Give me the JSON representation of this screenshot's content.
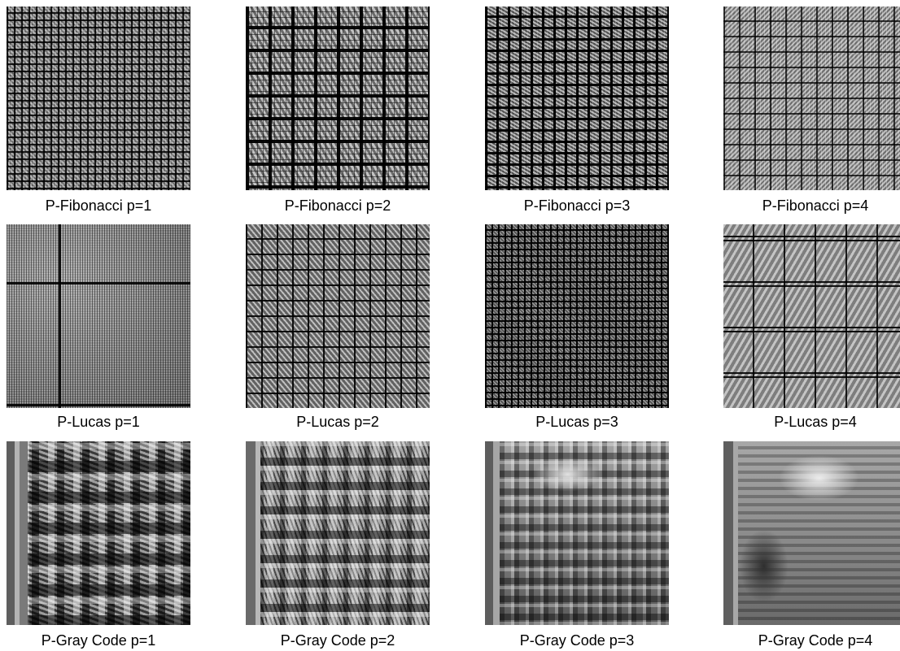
{
  "figure": {
    "rows": [
      {
        "panels": [
          {
            "caption": "P-Fibonacci p=1"
          },
          {
            "caption": "P-Fibonacci p=2"
          },
          {
            "caption": "P-Fibonacci p=3"
          },
          {
            "caption": "P-Fibonacci p=4"
          }
        ]
      },
      {
        "panels": [
          {
            "caption": "P-Lucas p=1"
          },
          {
            "caption": "P-Lucas p=2"
          },
          {
            "caption": "P-Lucas p=3"
          },
          {
            "caption": "P-Lucas p=4"
          }
        ]
      },
      {
        "panels": [
          {
            "caption": "P-Gray Code p=1"
          },
          {
            "caption": "P-Gray Code p=2"
          },
          {
            "caption": "P-Gray Code p=3"
          },
          {
            "caption": "P-Gray Code p=4"
          }
        ]
      }
    ]
  }
}
